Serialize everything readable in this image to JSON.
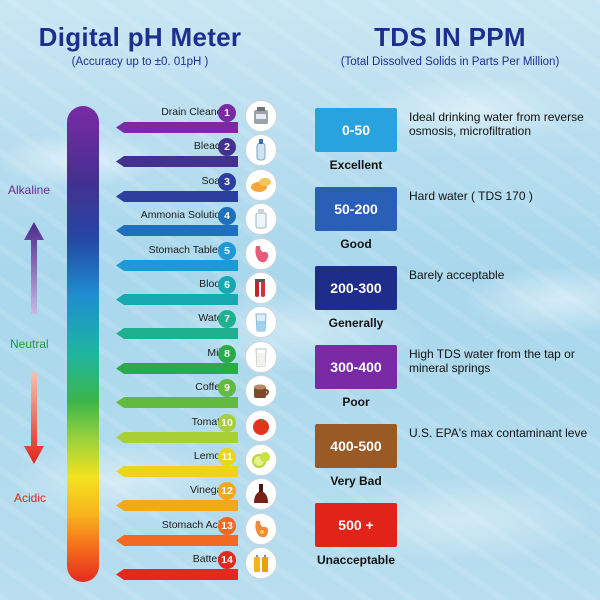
{
  "ph_panel": {
    "title": "Digital pH Meter",
    "subtitle": "(Accuracy up to  ±0. 01pH )",
    "labels": {
      "alkaline": "Alkaline",
      "neutral": "Neutral",
      "acidic": "Acidic"
    },
    "scale": [
      {
        "num": "1",
        "name": "Drain Cleaner",
        "color": "#7b2aa6",
        "icon": "drain-cleaner-icon"
      },
      {
        "num": "2",
        "name": "Bleach",
        "color": "#43308f",
        "icon": "bleach-bottle-icon"
      },
      {
        "num": "3",
        "name": "Soap",
        "color": "#2c3e9e",
        "icon": "soap-icon"
      },
      {
        "num": "4",
        "name": "Ammonia Solution",
        "color": "#1f6fbf",
        "icon": "ammonia-bottle-icon"
      },
      {
        "num": "5",
        "name": "Stomach Tablets",
        "color": "#1c99d6",
        "icon": "stomach-icon"
      },
      {
        "num": "6",
        "name": "Blood",
        "color": "#17a9b0",
        "icon": "blood-tubes-icon"
      },
      {
        "num": "7",
        "name": "Water",
        "color": "#1fb08f",
        "icon": "water-glass-icon"
      },
      {
        "num": "8",
        "name": "Milk",
        "color": "#2aab4a",
        "icon": "milk-glass-icon"
      },
      {
        "num": "9",
        "name": "Coffee",
        "color": "#62bb3f",
        "icon": "coffee-cup-icon"
      },
      {
        "num": "10",
        "name": "Tomato",
        "color": "#a8cf33",
        "icon": "tomato-icon"
      },
      {
        "num": "11",
        "name": "Lemon",
        "color": "#e9d61c",
        "icon": "lemon-icon"
      },
      {
        "num": "12",
        "name": "Vinegar",
        "color": "#f3a81c",
        "icon": "vinegar-icon"
      },
      {
        "num": "13",
        "name": "Stomach Acid",
        "color": "#f26a21",
        "icon": "stomach-acid-icon"
      },
      {
        "num": "14",
        "name": "Battery",
        "color": "#e5281d",
        "icon": "battery-icon"
      }
    ]
  },
  "tds_panel": {
    "title": "TDS IN PPM",
    "subtitle": "(Total Dissolved Solids in Parts Per Million)",
    "levels": [
      {
        "range": "0-50",
        "grade": "Excellent",
        "desc": "Ideal drinking water from reverse osmosis, microfiltration",
        "color": "#29a3e0"
      },
      {
        "range": "50-200",
        "grade": "Good",
        "desc": "Hard water ( TDS 170 )",
        "color": "#2a5fb8"
      },
      {
        "range": "200-300",
        "grade": "Generally",
        "desc": "Barely acceptable",
        "color": "#1f2d8a"
      },
      {
        "range": "300-400",
        "grade": "Poor",
        "desc": "High TDS water from the tap or mineral springs",
        "color": "#7b2aa6"
      },
      {
        "range": "400-500",
        "grade": "Very Bad",
        "desc": "U.S. EPA's max contaminant leve",
        "color": "#9a5a26"
      },
      {
        "range": "500 +",
        "grade": "Unacceptable",
        "desc": "",
        "color": "#e2231a"
      }
    ]
  }
}
